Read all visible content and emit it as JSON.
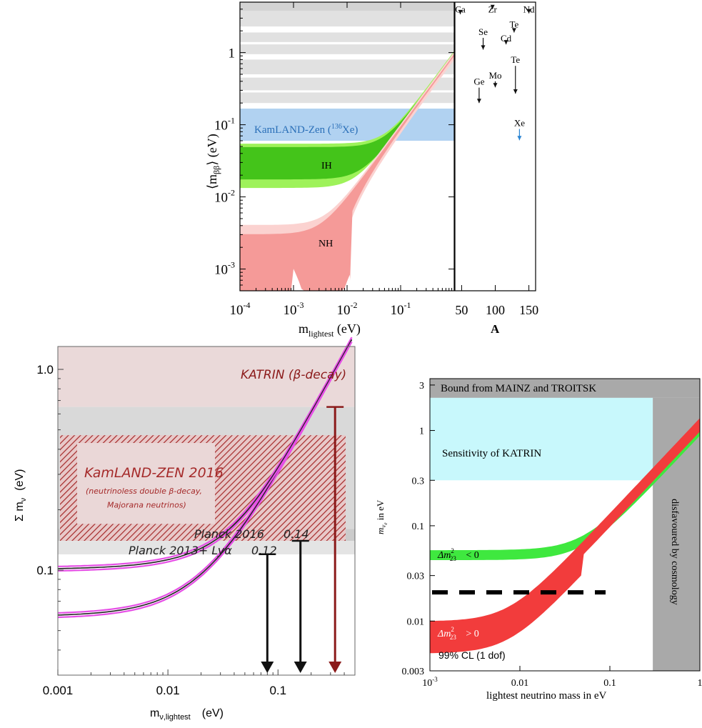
{
  "chart_data": [
    {
      "type": "area",
      "panel": "top-left",
      "ylabel_main": "⟨m",
      "ylabel_sub": "ββ",
      "ylabel_unit": "⟩ (eV)",
      "xlabel_main": "m",
      "xlabel_sub": "lightest",
      "xlabel_unit": " (eV)",
      "xscale": "log",
      "yscale": "log",
      "xlim": [
        0.0001,
        1.0
      ],
      "ylim": [
        0.0005,
        5
      ],
      "x_ticks": [
        {
          "base": "10",
          "exp": "-4"
        },
        {
          "base": "10",
          "exp": "-3"
        },
        {
          "base": "10",
          "exp": "-2"
        },
        {
          "base": "10",
          "exp": "-1"
        }
      ],
      "y_ticks": [
        {
          "base": "10",
          "exp": "-3"
        },
        {
          "base": "10",
          "exp": "-2"
        },
        {
          "base": "10",
          "exp": "-1"
        },
        {
          "plain": "1"
        }
      ],
      "kamland_label": "KamLAND-Zen (",
      "kamland_sup": "136",
      "kamland_label_end": "Xe)",
      "kamland_range": [
        0.06,
        0.16
      ],
      "ih_label": "IH",
      "nh_label": "NH",
      "colors": {
        "ih": "#44c41a",
        "ih_light": "#9ef25a",
        "nh": "#f59a98",
        "nh_light": "#fbd2d0",
        "kamland": "#a8cdef",
        "grey": "#c8c8c8"
      }
    },
    {
      "type": "scatter",
      "panel": "top-right",
      "xlabel": "A",
      "x_ticks": [
        "50",
        "100",
        "150"
      ],
      "xlim": [
        40,
        160
      ],
      "isotopes": [
        {
          "name": "Ca",
          "A": 48,
          "top": 4.5,
          "bottom": 3.4
        },
        {
          "name": "Zr",
          "A": 96,
          "top": 4.5,
          "bottom": 4.0
        },
        {
          "name": "Nd",
          "A": 150,
          "top": 4.5,
          "bottom": 3.5
        },
        {
          "name": "Se",
          "A": 82,
          "top": 2.2,
          "bottom": 1.1
        },
        {
          "name": "Te",
          "A": 128,
          "top": 2.8,
          "bottom": 1.9
        },
        {
          "name": "Cd",
          "A": 116,
          "top": 1.8,
          "bottom": 1.3
        },
        {
          "name": "Te",
          "A": 130,
          "top": 0.9,
          "bottom": 0.27
        },
        {
          "name": "Mo",
          "A": 100,
          "top": 0.55,
          "bottom": 0.33
        },
        {
          "name": "Ge",
          "A": 76,
          "top": 0.45,
          "bottom": 0.2
        },
        {
          "name": "Xe",
          "A": 136,
          "top": 0.12,
          "bottom": 0.061
        }
      ]
    },
    {
      "type": "line",
      "panel": "bottom-left",
      "xlabel_main": "m",
      "xlabel_sub": "ν,lightest",
      "xlabel_unit": "(eV)",
      "ylabel_main": "Σ m",
      "ylabel_sub": "ν",
      "ylabel_unit": "(eV)",
      "xscale": "log",
      "yscale": "log",
      "xlim": [
        0.001,
        0.5
      ],
      "ylim": [
        0.03,
        1.3
      ],
      "x_ticks": [
        "0.001",
        "0.01",
        "0.1"
      ],
      "y_ticks": [
        "0.1",
        "1.0"
      ],
      "katrin_label": "KATRIN (β-decay)",
      "kamland_label": "KamLAND-ZEN 2016",
      "kamland_sub1": "(neutrinoless double β-decay,",
      "kamland_sub2": "Majorana neutrinos)",
      "kamland_range": [
        0.14,
        0.47
      ],
      "planck16_label": "Planck 2016",
      "planck16_value": "0.14",
      "planck13_label": "Planck 2013+ Lyα",
      "planck13_value": "0.12",
      "katrin_bound": 0.65,
      "arrows": [
        {
          "x": 0.08,
          "from": 0.12
        },
        {
          "x": 0.16,
          "from": 0.14
        },
        {
          "x": 0.33,
          "from": 0.65
        }
      ],
      "colors": {
        "katrin_band": "#ead9d9",
        "kamland": "#a52a2a",
        "curve": "#e64fe6",
        "dark_red": "#8b1a1a"
      }
    },
    {
      "type": "area",
      "panel": "bottom-right",
      "xlabel": "lightest neutrino mass in eV",
      "ylabel": "m",
      "ylabel_sub": "ν",
      "ylabel_subsub": "e",
      "ylabel_unit": "  in eV",
      "xscale": "log",
      "yscale": "log",
      "xlim": [
        0.001,
        1
      ],
      "ylim": [
        0.003,
        3.5
      ],
      "x_ticks": [
        {
          "base": "10",
          "exp": "-3"
        },
        {
          "plain": "0.01"
        },
        {
          "plain": "0.1"
        },
        {
          "plain": "1"
        }
      ],
      "y_ticks": [
        "0.003",
        "0.01",
        "0.03",
        "0.1",
        "0.3",
        "1",
        "3"
      ],
      "mainz_label": "Bound from MAINZ and TROITSK",
      "mainz_bound": 2.2,
      "katrin_label": "Sensitivity of KATRIN",
      "katrin_bound": 0.3,
      "cosmo_label": "disfavoured by cosmology",
      "cosmo_bound": 0.3,
      "ih_label": "Δm",
      "ih_sup": "2",
      "ih_sub": "23",
      "ih_rel": " < 0",
      "nh_label": "Δm",
      "nh_sup": "2",
      "nh_sub": "23",
      "nh_rel": " > 0",
      "cl_label": "99% CL (1 dof)",
      "dashed_level": 0.02,
      "colors": {
        "grey": "#a9a9a9",
        "katrin": "#c8f8fc",
        "ih": "#3fe83f",
        "nh": "#f23c3c"
      }
    }
  ]
}
